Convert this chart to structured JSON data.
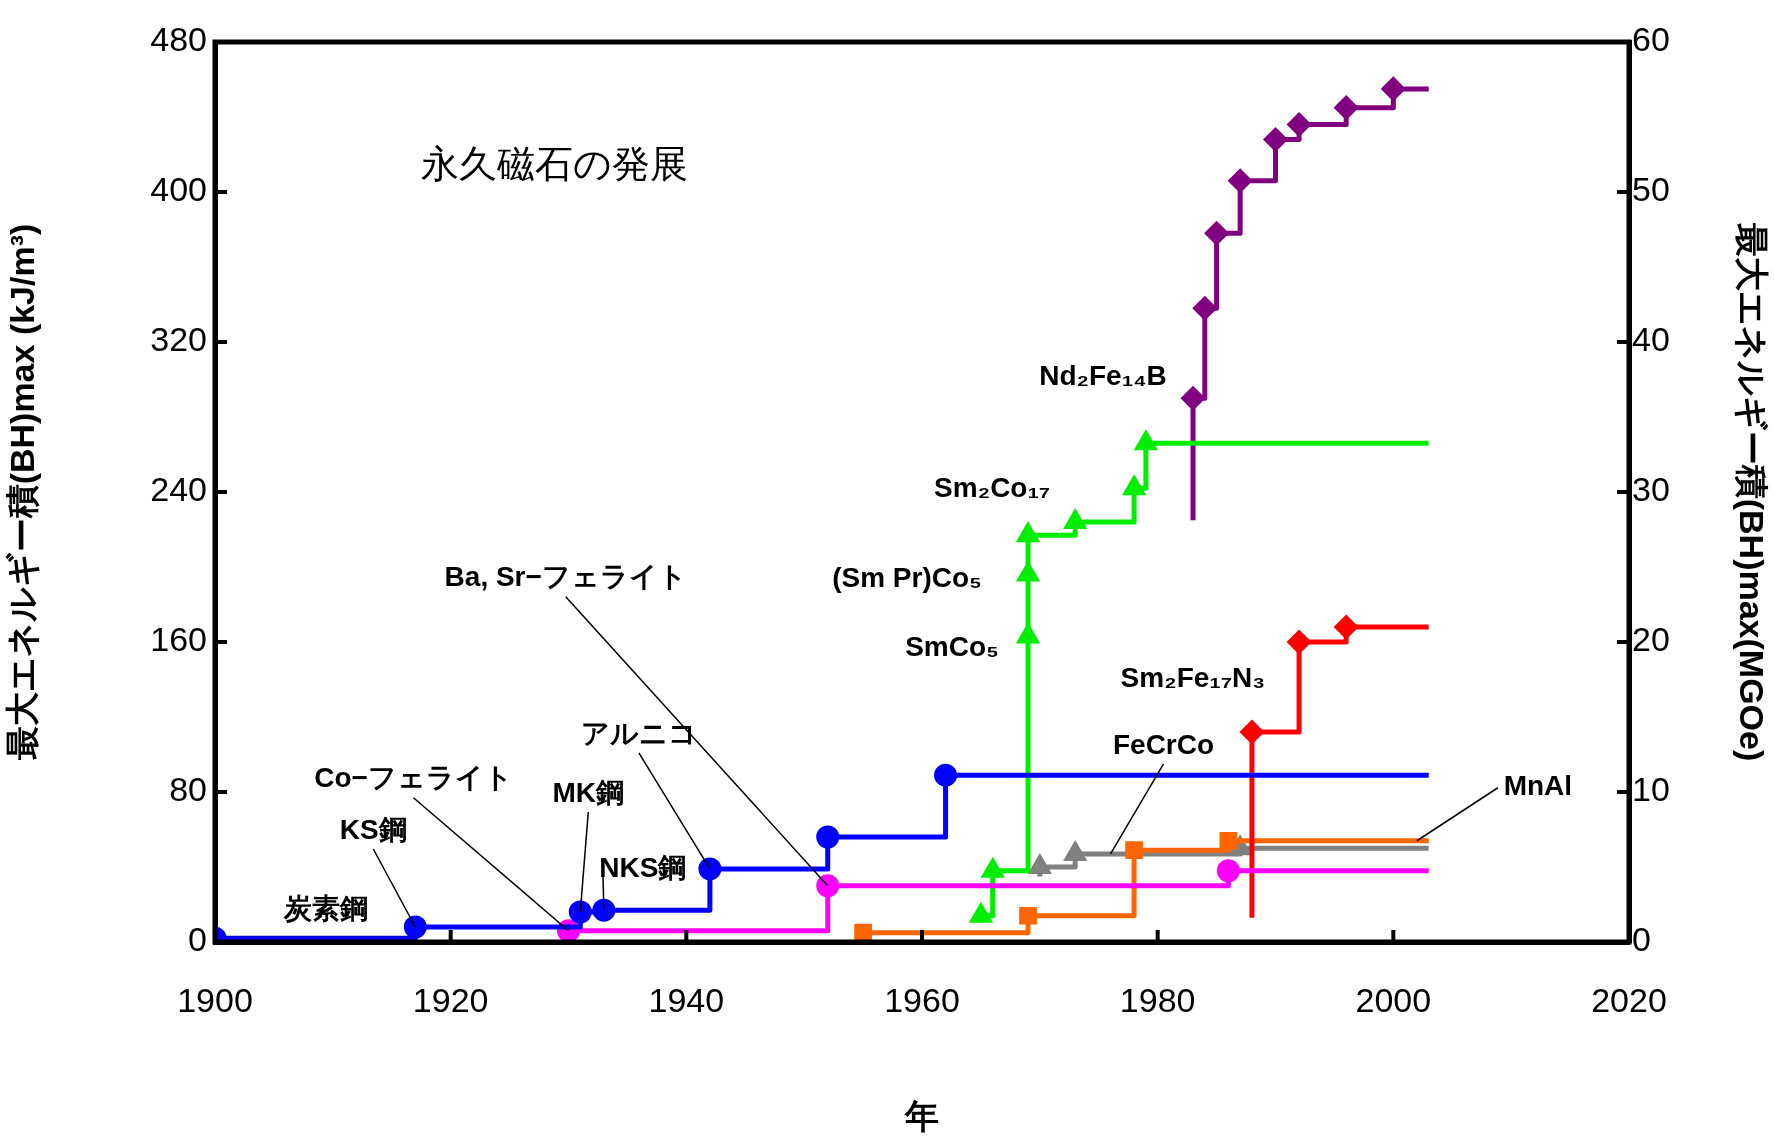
{
  "chart_data": {
    "type": "step",
    "title": "永久磁石の発展",
    "xlabel": "年",
    "ylabel": "最大エネルギー積(BH)max (kJ/m³)",
    "y2label": "最大エネルギー積(BH)max(MGOe)",
    "xlim": [
      1900,
      2020
    ],
    "xticks": [
      1900,
      1920,
      1940,
      1960,
      1980,
      2000,
      2020
    ],
    "ylim": [
      0,
      480
    ],
    "yticks": [
      0,
      80,
      160,
      240,
      320,
      400,
      480
    ],
    "y2lim": [
      0,
      60
    ],
    "y2ticks": [
      0,
      10,
      20,
      30,
      40,
      50,
      60
    ],
    "series": [
      {
        "color": "#0000ff",
        "marker": "circle",
        "x": [
          1900,
          1917,
          1931,
          1933,
          1942,
          1952,
          1962,
          2003
        ],
        "values": [
          2,
          8,
          16,
          17,
          39,
          56,
          89,
          89
        ]
      },
      {
        "color": "#ff00ff",
        "marker": "circle",
        "x": [
          1930,
          1952,
          1986,
          2003
        ],
        "values": [
          6,
          30,
          38,
          38
        ]
      },
      {
        "color": "#00ee00",
        "marker": "triangle",
        "x": [
          1965,
          1966,
          1969,
          1969,
          1969,
          1973,
          1978,
          1979,
          2003
        ],
        "values": [
          14,
          38,
          163,
          196,
          217,
          224,
          242,
          266,
          266
        ]
      },
      {
        "color": "#800080",
        "marker": "diamond",
        "x": [
          1983,
          1983,
          1984,
          1985,
          1987,
          1990,
          1992,
          1996,
          2000,
          2003
        ],
        "values": [
          225,
          290,
          338,
          378,
          406,
          428,
          436,
          445,
          455,
          455
        ]
      },
      {
        "color": "#ff0000",
        "marker": "diamond",
        "x": [
          1988,
          1988,
          1992,
          1996,
          2003
        ],
        "values": [
          13,
          112,
          160,
          168,
          168
        ]
      },
      {
        "color": "#ff6600",
        "marker": "square",
        "x": [
          1955,
          1969,
          1978,
          1986,
          2003
        ],
        "values": [
          5,
          14,
          49,
          54,
          54
        ]
      },
      {
        "color": "#808080",
        "marker": "triangle",
        "x": [
          1970,
          1970,
          1973,
          1987,
          2003
        ],
        "values": [
          35,
          40,
          47,
          50,
          50
        ]
      }
    ],
    "annotations": [
      {
        "text": "炭素鋼",
        "x": 1910,
        "y": 2
      },
      {
        "text": "KS鋼",
        "x": 1917,
        "y": 8
      },
      {
        "text": "Co−フェライト",
        "x": 1930,
        "y": 6
      },
      {
        "text": "MK鋼",
        "x": 1931,
        "y": 16
      },
      {
        "text": "NKS鋼",
        "x": 1933,
        "y": 17
      },
      {
        "text": "アルニコ",
        "x": 1942,
        "y": 39
      },
      {
        "text": "Ba, Sr−フェライト",
        "x": 1952,
        "y": 30
      },
      {
        "text": "SmCo₅",
        "x": 1969,
        "y": 163
      },
      {
        "text": "(Sm Pr)Co₅",
        "x": 1969,
        "y": 196
      },
      {
        "text": "Sm₂Co₁₇",
        "x": 1973,
        "y": 224
      },
      {
        "text": "Nd₂Fe₁₄B",
        "x": 1983,
        "y": 290
      },
      {
        "text": "Sm₂Fe₁₇N₃",
        "x": 1988,
        "y": 112
      },
      {
        "text": "FeCrCo",
        "x": 1976,
        "y": 47
      },
      {
        "text": "MnAl",
        "x": 2002,
        "y": 54
      }
    ]
  }
}
